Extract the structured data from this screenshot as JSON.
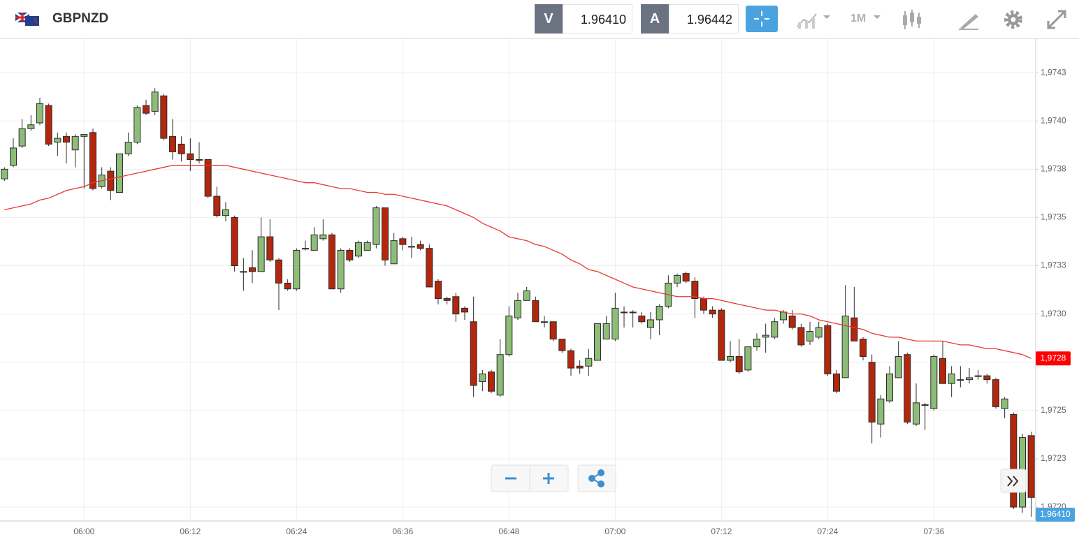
{
  "header": {
    "symbol": "GBPNZD",
    "sell_label": "V",
    "sell_price": "1.96410",
    "buy_label": "A",
    "buy_price": "1.96442",
    "timeframe": "1M"
  },
  "chart_data": {
    "type": "candlestick",
    "categories": [
      null,
      null,
      null,
      null,
      null,
      null,
      null,
      null,
      null,
      "06:00",
      null,
      null,
      null,
      null,
      null,
      null,
      null,
      null,
      null,
      null,
      null,
      "06:12",
      null,
      null,
      null,
      null,
      null,
      null,
      null,
      null,
      null,
      null,
      null,
      "06:24",
      null,
      null,
      null,
      null,
      null,
      null,
      null,
      null,
      null,
      null,
      null,
      "06:36",
      null,
      null,
      null,
      null,
      null,
      null,
      null,
      null,
      null,
      null,
      null,
      "06:48",
      null,
      null,
      null,
      null,
      null,
      null,
      null,
      null,
      null,
      null,
      null,
      "07:00",
      null,
      null,
      null,
      null,
      null,
      null,
      null,
      null,
      null,
      null,
      null,
      "07:12",
      null,
      null,
      null,
      null,
      null,
      null,
      null,
      null,
      null,
      null,
      null,
      "07:24",
      null,
      null,
      null,
      null,
      null,
      null,
      null,
      null,
      null,
      null,
      null,
      "07:36",
      null,
      null,
      null,
      null,
      null,
      null,
      null,
      null,
      null,
      null,
      null
    ],
    "open": [
      1.9737,
      1.97377,
      1.97387,
      1.97396,
      1.97399,
      1.97408,
      1.97389,
      1.97392,
      1.97385,
      1.97392,
      1.97394,
      1.97366,
      1.97374,
      1.97363,
      1.97383,
      1.97389,
      1.97408,
      1.97405,
      1.97413,
      1.97392,
      1.97388,
      1.97383,
      1.9738,
      1.9738,
      1.97361,
      1.97351,
      1.9735,
      1.97322,
      1.97324,
      1.97322,
      1.9734,
      1.97328,
      1.97316,
      1.97313,
      1.97334,
      1.97333,
      1.97339,
      1.97341,
      1.97313,
      1.97333,
      1.9733,
      1.97333,
      1.97336,
      1.97355,
      1.97326,
      1.97339,
      1.97335,
      1.97336,
      1.97334,
      1.97317,
      1.97308,
      1.97309,
      1.97303,
      1.97296,
      1.97265,
      1.9727,
      1.97258,
      1.97279,
      1.97298,
      1.97307,
      1.97307,
      1.97296,
      1.97296,
      1.97287,
      1.97281,
      1.97273,
      1.97273,
      1.97276,
      1.97287,
      1.97287,
      1.97301,
      1.97301,
      1.97299,
      1.97293,
      1.97297,
      1.97304,
      1.97316,
      1.97321,
      1.97317,
      1.97308,
      1.97302,
      1.97302,
      1.97276,
      1.97278,
      1.97271,
      1.97283,
      1.97288,
      1.97288,
      1.97297,
      1.97299,
      1.97293,
      1.97286,
      1.97288,
      1.97294,
      1.97269,
      1.97267,
      1.97298,
      1.97287,
      1.97275,
      1.97243,
      1.97255,
      1.97267,
      1.97279,
      1.97243,
      1.97253,
      1.97251,
      1.97277,
      1.97264,
      1.97266,
      1.97266,
      1.97268,
      1.97268,
      1.97266,
      1.97251,
      1.97248,
      1.972,
      1.97237
    ],
    "high": [
      1.97376,
      1.97391,
      1.97401,
      1.97403,
      1.97412,
      1.97409,
      1.97394,
      1.97394,
      1.97393,
      1.97393,
      1.97396,
      1.97376,
      1.97376,
      1.97383,
      1.97394,
      1.97408,
      1.97411,
      1.97417,
      1.97414,
      1.97401,
      1.97392,
      1.97391,
      1.97389,
      1.9738,
      1.97366,
      1.97358,
      1.97351,
      1.97329,
      1.97333,
      1.9735,
      1.97349,
      1.97329,
      1.97318,
      1.97334,
      1.97338,
      1.97345,
      1.97349,
      1.97342,
      1.97334,
      1.97334,
      1.97338,
      1.97338,
      1.97356,
      1.97355,
      1.97342,
      1.9734,
      1.9734,
      1.97338,
      1.97336,
      1.97318,
      1.97309,
      1.97311,
      1.97304,
      1.97309,
      1.97271,
      1.97271,
      1.97287,
      1.97304,
      1.97311,
      1.97314,
      1.97309,
      1.97299,
      1.97296,
      1.97287,
      1.97282,
      1.97276,
      1.97282,
      1.97295,
      1.97299,
      1.97311,
      1.97304,
      1.97302,
      1.97301,
      1.97301,
      1.97305,
      1.9732,
      1.97321,
      1.97322,
      1.97319,
      1.97309,
      1.97304,
      1.97303,
      1.97286,
      1.97287,
      1.97283,
      1.9729,
      1.97295,
      1.97298,
      1.97302,
      1.97302,
      1.97295,
      1.97296,
      1.97296,
      1.97295,
      1.97271,
      1.97315,
      1.97314,
      1.97288,
      1.97279,
      1.97258,
      1.97273,
      1.97286,
      1.9728,
      1.97264,
      1.97254,
      1.97279,
      1.97286,
      1.97273,
      1.97273,
      1.97272,
      1.97271,
      1.97269,
      1.97267,
      1.97257,
      1.97249,
      1.97238,
      1.97239
    ],
    "low": [
      1.97369,
      1.97376,
      1.97386,
      1.97395,
      1.97398,
      1.97387,
      1.97382,
      1.97378,
      1.97376,
      1.97365,
      1.97364,
      1.97365,
      1.97359,
      1.97363,
      1.97382,
      1.97388,
      1.97403,
      1.97403,
      1.9739,
      1.9738,
      1.97379,
      1.97374,
      1.97378,
      1.9736,
      1.9735,
      1.97348,
      1.97322,
      1.97312,
      1.97316,
      1.97322,
      1.97327,
      1.97302,
      1.97312,
      1.97312,
      1.97333,
      1.97333,
      1.97338,
      1.97313,
      1.97311,
      1.97327,
      1.97329,
      1.97333,
      1.97334,
      1.97325,
      1.97326,
      1.97333,
      1.97329,
      1.97333,
      1.97314,
      1.97305,
      1.97305,
      1.97296,
      1.97297,
      1.97257,
      1.9726,
      1.97259,
      1.97257,
      1.97278,
      1.97297,
      1.97307,
      1.97296,
      1.97293,
      1.97286,
      1.9728,
      1.97268,
      1.97269,
      1.97268,
      1.97276,
      1.97287,
      1.97286,
      1.97293,
      1.97293,
      1.97295,
      1.97287,
      1.97289,
      1.97303,
      1.97314,
      1.97316,
      1.97298,
      1.973,
      1.97298,
      1.97276,
      1.97275,
      1.97269,
      1.9727,
      1.97281,
      1.9728,
      1.97287,
      1.97295,
      1.97292,
      1.97283,
      1.97284,
      1.97287,
      1.97268,
      1.97259,
      1.97267,
      1.97286,
      1.97276,
      1.97233,
      1.97236,
      1.97254,
      1.97267,
      1.97243,
      1.97242,
      1.9724,
      1.9725,
      1.97264,
      1.97257,
      1.97262,
      1.97264,
      1.97266,
      1.97264,
      1.97251,
      1.97246,
      1.97199,
      1.97197,
      1.97195
    ],
    "close": [
      1.97375,
      1.97386,
      1.97396,
      1.97398,
      1.97409,
      1.97388,
      1.97391,
      1.97389,
      1.97392,
      1.97393,
      1.97365,
      1.97372,
      1.97364,
      1.97383,
      1.97389,
      1.97407,
      1.97404,
      1.97415,
      1.97391,
      1.97384,
      1.97383,
      1.9738,
      1.9738,
      1.97361,
      1.97351,
      1.97354,
      1.97325,
      1.97322,
      1.97322,
      1.9734,
      1.97328,
      1.97316,
      1.97313,
      1.97333,
      1.97334,
      1.97341,
      1.97341,
      1.97313,
      1.97333,
      1.97328,
      1.97337,
      1.97337,
      1.97355,
      1.97328,
      1.97338,
      1.97336,
      1.97335,
      1.97334,
      1.97314,
      1.97308,
      1.97307,
      1.973,
      1.97301,
      1.97263,
      1.97269,
      1.9726,
      1.97279,
      1.97299,
      1.97307,
      1.97312,
      1.97296,
      1.97296,
      1.97287,
      1.97281,
      1.97272,
      1.97272,
      1.97277,
      1.97295,
      1.97295,
      1.97303,
      1.97301,
      1.97301,
      1.97296,
      1.97297,
      1.97304,
      1.97316,
      1.9732,
      1.97317,
      1.97308,
      1.97302,
      1.973,
      1.97276,
      1.97278,
      1.9727,
      1.97283,
      1.97287,
      1.97289,
      1.97296,
      1.97301,
      1.97293,
      1.97284,
      1.97291,
      1.97293,
      1.97269,
      1.9726,
      1.97299,
      1.97286,
      1.97278,
      1.97244,
      1.97256,
      1.97269,
      1.97278,
      1.97244,
      1.97254,
      1.97253,
      1.97278,
      1.97264,
      1.97269,
      1.97266,
      1.97267,
      1.97268,
      1.97266,
      1.97252,
      1.97256,
      1.972,
      1.97236,
      1.97205
    ],
    "up_color": "#8dbd78",
    "down_color": "#b2270d",
    "outline_color": "#2b2b2b",
    "moving_average": {
      "color": "#e8392e",
      "values": [
        1.97354,
        1.97355,
        1.97356,
        1.97357,
        1.97359,
        1.9736,
        1.97362,
        1.97364,
        1.97365,
        1.97366,
        1.97368,
        1.97369,
        1.9737,
        1.97371,
        1.97372,
        1.97373,
        1.97374,
        1.97375,
        1.97376,
        1.97377,
        1.97377,
        1.97377,
        1.97377,
        1.97377,
        1.97377,
        1.97377,
        1.97376,
        1.97375,
        1.97374,
        1.97373,
        1.97372,
        1.97371,
        1.9737,
        1.97369,
        1.97368,
        1.97368,
        1.97367,
        1.97366,
        1.97365,
        1.97365,
        1.97364,
        1.97363,
        1.97363,
        1.97362,
        1.97362,
        1.97361,
        1.9736,
        1.97359,
        1.97358,
        1.97357,
        1.97356,
        1.97354,
        1.97352,
        1.9735,
        1.97347,
        1.97345,
        1.97343,
        1.9734,
        1.97339,
        1.97338,
        1.97336,
        1.97335,
        1.97333,
        1.97331,
        1.97328,
        1.97326,
        1.97323,
        1.97322,
        1.9732,
        1.97318,
        1.97316,
        1.97314,
        1.97313,
        1.97312,
        1.97311,
        1.9731,
        1.97309,
        1.97309,
        1.97309,
        1.97308,
        1.97308,
        1.97307,
        1.97306,
        1.97305,
        1.97304,
        1.97303,
        1.97302,
        1.97302,
        1.97301,
        1.973,
        1.973,
        1.97299,
        1.97297,
        1.97296,
        1.97295,
        1.97294,
        1.97293,
        1.97292,
        1.9729,
        1.97289,
        1.97288,
        1.97288,
        1.97287,
        1.97286,
        1.97286,
        1.97286,
        1.97286,
        1.97285,
        1.97284,
        1.97284,
        1.97283,
        1.97282,
        1.97282,
        1.97281,
        1.9728,
        1.97279,
        1.97277
      ]
    },
    "markers": [
      {
        "value": 1.97277,
        "label": "1,9728",
        "color": "#ff0000"
      }
    ],
    "bid_label": "1,96410",
    "ylim": [
      1.971928,
      1.974424
    ],
    "yticks": [
      {
        "value": 1.97425,
        "label": "1,9743"
      },
      {
        "value": 1.974,
        "label": "1,9740"
      },
      {
        "value": 1.97375,
        "label": "1,9738"
      },
      {
        "value": 1.9735,
        "label": "1,9735"
      },
      {
        "value": 1.97325,
        "label": "1,9733"
      },
      {
        "value": 1.973,
        "label": "1,9730"
      },
      {
        "value": 1.97275,
        "label": "1,9728"
      },
      {
        "value": 1.9725,
        "label": "1,9725"
      },
      {
        "value": 1.97225,
        "label": "1,9723"
      },
      {
        "value": 1.972,
        "label": "1,9720"
      }
    ],
    "grid": true
  }
}
